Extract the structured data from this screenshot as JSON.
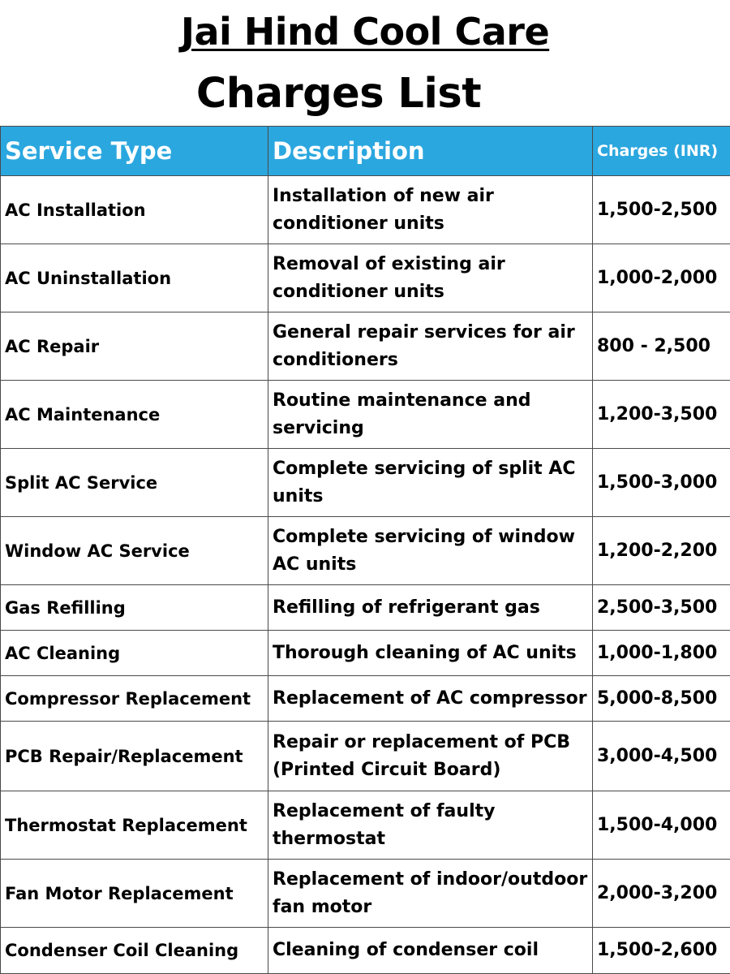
{
  "header": {
    "title": "Jai Hind Cool Care",
    "subtitle": "Charges List"
  },
  "table": {
    "columns": [
      "Service Type",
      "Description",
      "Charges (INR)"
    ],
    "rows": [
      {
        "service": "AC Installation",
        "description": "Installation of new air conditioner units",
        "charges": "1,500-2,500"
      },
      {
        "service": "AC Uninstallation",
        "description": "Removal of existing air conditioner units",
        "charges": "1,000-2,000"
      },
      {
        "service": "AC Repair",
        "description": "General repair services for air conditioners",
        "charges": "800 - 2,500"
      },
      {
        "service": "AC Maintenance",
        "description": "Routine maintenance and servicing",
        "charges": "1,200-3,500"
      },
      {
        "service": "Split AC Service",
        "description": "Complete servicing of split AC units",
        "charges": "1,500-3,000"
      },
      {
        "service": "Window AC Service",
        "description": "Complete servicing of window AC units",
        "charges": "1,200-2,200"
      },
      {
        "service": "Gas Refilling",
        "description": "Refilling of refrigerant gas",
        "charges": "2,500-3,500"
      },
      {
        "service": "AC Cleaning",
        "description": "Thorough cleaning of AC units",
        "charges": "1,000-1,800"
      },
      {
        "service": "Compressor Replacement",
        "description": "Replacement of AC compressor",
        "charges": "5,000-8,500"
      },
      {
        "service": "PCB Repair/Replacement",
        "description": "Repair or replacement of PCB (Printed Circuit Board)",
        "charges": "3,000-4,500"
      },
      {
        "service": "Thermostat Replacement",
        "description": "Replacement of faulty thermostat",
        "charges": "1,500-4,000"
      },
      {
        "service": "Fan Motor Replacement",
        "description": "Replacement of indoor/outdoor fan motor",
        "charges": "2,000-3,200"
      },
      {
        "service": "Condenser Coil Cleaning",
        "description": "Cleaning of condenser coil",
        "charges": "1,500-2,600"
      }
    ]
  },
  "colors": {
    "header_bg": "#2ba7df",
    "header_text": "#ffffff",
    "border": "#4a4a4a"
  }
}
